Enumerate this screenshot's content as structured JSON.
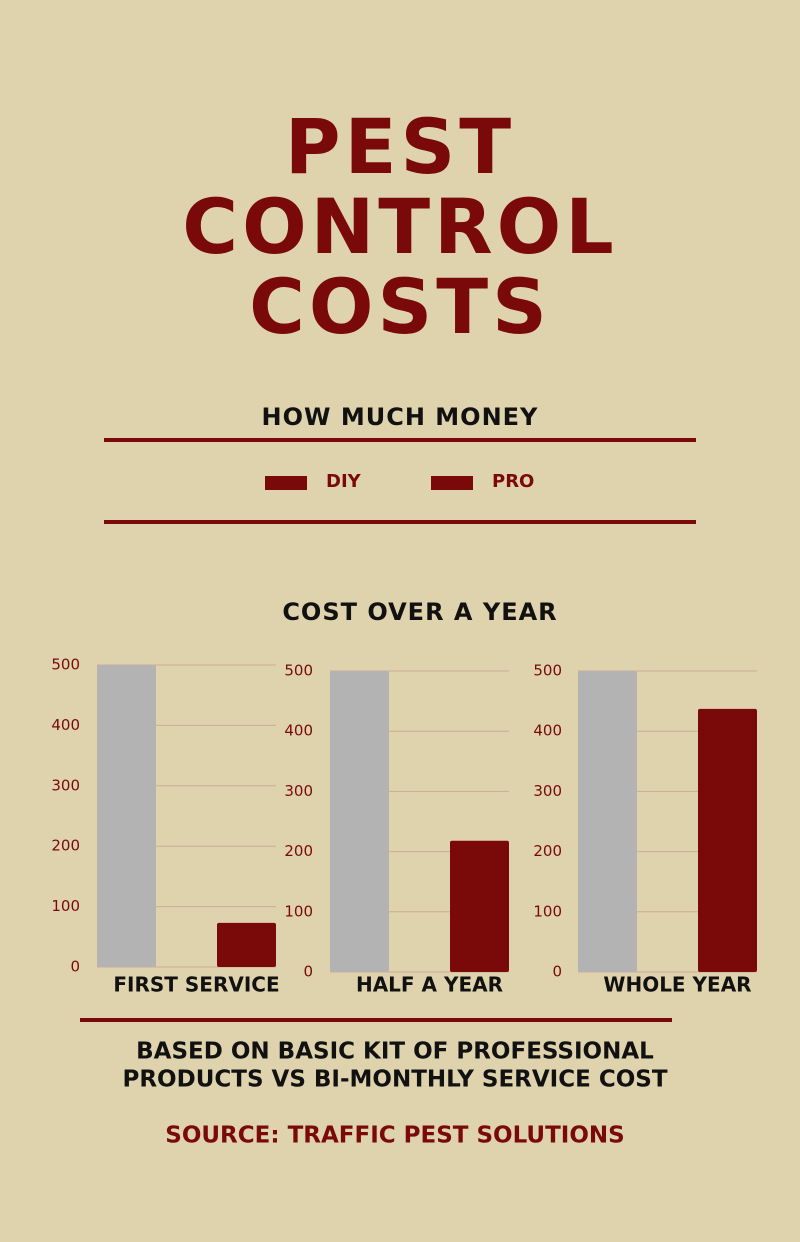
{
  "header": {
    "title_lines": [
      "PEST",
      "CONTROL",
      "COSTS"
    ],
    "subtitle": "HOW MUCH MONEY"
  },
  "legend": {
    "items": [
      {
        "label": "DIY",
        "color": "#7a0a0a"
      },
      {
        "label": "PRO",
        "color": "#7a0a0a"
      }
    ]
  },
  "charts_title": "COST OVER A YEAR",
  "chart_data": [
    {
      "type": "bar",
      "xlabel": "FIRST SERVICE",
      "ylim": [
        0,
        500
      ],
      "yticks": [
        0,
        100,
        200,
        300,
        400,
        500
      ],
      "grid": true,
      "series": [
        {
          "color": "#b3b3b3",
          "values": [
            500
          ]
        },
        {
          "color": "#7a0a0a",
          "values": [
            73
          ]
        }
      ]
    },
    {
      "type": "bar",
      "xlabel": "HALF A YEAR",
      "ylim": [
        0,
        500
      ],
      "yticks": [
        0,
        100,
        200,
        300,
        400,
        500
      ],
      "grid": true,
      "series": [
        {
          "color": "#b3b3b3",
          "values": [
            500
          ]
        },
        {
          "color": "#7a0a0a",
          "values": [
            218
          ]
        }
      ]
    },
    {
      "type": "bar",
      "xlabel": "WHOLE YEAR",
      "ylim": [
        0,
        500
      ],
      "yticks": [
        0,
        100,
        200,
        300,
        400,
        500
      ],
      "grid": true,
      "series": [
        {
          "color": "#b3b3b3",
          "values": [
            500
          ]
        },
        {
          "color": "#7a0a0a",
          "values": [
            437
          ]
        }
      ]
    }
  ],
  "footer": {
    "note_lines": [
      "BASED ON BASIC KIT OF PROFESSIONAL",
      "PRODUCTS VS BI-MONTHLY SERVICE COST"
    ],
    "source": "SOURCE: TRAFFIC PEST SOLUTIONS"
  }
}
